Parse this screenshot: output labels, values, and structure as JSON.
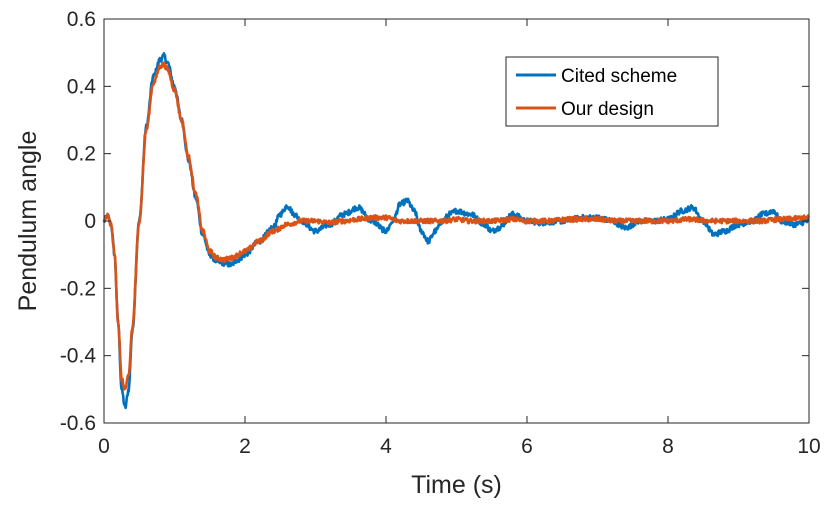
{
  "chart_data": {
    "type": "line",
    "xlabel": "Time (s)",
    "ylabel": "Pendulum angle",
    "xlim": [
      0,
      10
    ],
    "ylim": [
      -0.6,
      0.6
    ],
    "xticks": [
      "0",
      "2",
      "4",
      "6",
      "8",
      "10"
    ],
    "yticks": [
      "-0.6",
      "-0.4",
      "-0.2",
      "0",
      "0.2",
      "0.4",
      "0.6"
    ],
    "grid": false,
    "box": true,
    "legend_position": "top-right",
    "noise": {
      "Cited scheme": 0.008,
      "Our design": 0.007
    },
    "series": [
      {
        "name": "Cited scheme",
        "color": "#0072BD",
        "points": [
          [
            0,
            0.0
          ],
          [
            0.05,
            0.015
          ],
          [
            0.1,
            -0.01
          ],
          [
            0.15,
            -0.1
          ],
          [
            0.2,
            -0.3
          ],
          [
            0.25,
            -0.5
          ],
          [
            0.3,
            -0.555
          ],
          [
            0.35,
            -0.5
          ],
          [
            0.4,
            -0.33
          ],
          [
            0.5,
            0.0
          ],
          [
            0.6,
            0.28
          ],
          [
            0.7,
            0.43
          ],
          [
            0.8,
            0.48
          ],
          [
            0.85,
            0.49
          ],
          [
            0.9,
            0.47
          ],
          [
            1.0,
            0.4
          ],
          [
            1.1,
            0.3
          ],
          [
            1.2,
            0.18
          ],
          [
            1.3,
            0.07
          ],
          [
            1.4,
            -0.04
          ],
          [
            1.5,
            -0.1
          ],
          [
            1.6,
            -0.12
          ],
          [
            1.7,
            -0.125
          ],
          [
            1.8,
            -0.13
          ],
          [
            1.9,
            -0.115
          ],
          [
            2.0,
            -0.1
          ],
          [
            2.2,
            -0.06
          ],
          [
            2.4,
            -0.02
          ],
          [
            2.5,
            0.02
          ],
          [
            2.6,
            0.045
          ],
          [
            2.7,
            0.02
          ],
          [
            2.8,
            0.0
          ],
          [
            3.0,
            -0.03
          ],
          [
            3.2,
            -0.01
          ],
          [
            3.4,
            0.02
          ],
          [
            3.6,
            0.04
          ],
          [
            3.8,
            0.0
          ],
          [
            4.0,
            -0.03
          ],
          [
            4.1,
            0.0
          ],
          [
            4.2,
            0.05
          ],
          [
            4.3,
            0.06
          ],
          [
            4.4,
            0.03
          ],
          [
            4.5,
            -0.03
          ],
          [
            4.6,
            -0.06
          ],
          [
            4.7,
            -0.03
          ],
          [
            4.8,
            0.0
          ],
          [
            4.9,
            0.02
          ],
          [
            5.0,
            0.03
          ],
          [
            5.2,
            0.02
          ],
          [
            5.4,
            -0.01
          ],
          [
            5.5,
            -0.03
          ],
          [
            5.6,
            -0.02
          ],
          [
            5.8,
            0.02
          ],
          [
            6.0,
            0.0
          ],
          [
            6.2,
            -0.005
          ],
          [
            6.5,
            0.0
          ],
          [
            6.8,
            0.01
          ],
          [
            7.0,
            0.01
          ],
          [
            7.2,
            0.0
          ],
          [
            7.4,
            -0.02
          ],
          [
            7.6,
            0.0
          ],
          [
            7.8,
            0.0
          ],
          [
            8.0,
            0.005
          ],
          [
            8.2,
            0.03
          ],
          [
            8.35,
            0.04
          ],
          [
            8.5,
            0.0
          ],
          [
            8.65,
            -0.04
          ],
          [
            8.8,
            -0.03
          ],
          [
            9.0,
            -0.01
          ],
          [
            9.2,
            0.0
          ],
          [
            9.35,
            0.02
          ],
          [
            9.5,
            0.03
          ],
          [
            9.6,
            0.0
          ],
          [
            9.8,
            -0.01
          ],
          [
            10.0,
            0.0
          ]
        ]
      },
      {
        "name": "Our design",
        "color": "#D95319",
        "points": [
          [
            0,
            0.0
          ],
          [
            0.05,
            0.015
          ],
          [
            0.1,
            -0.01
          ],
          [
            0.15,
            -0.1
          ],
          [
            0.2,
            -0.3
          ],
          [
            0.25,
            -0.47
          ],
          [
            0.3,
            -0.5
          ],
          [
            0.35,
            -0.46
          ],
          [
            0.4,
            -0.32
          ],
          [
            0.5,
            0.0
          ],
          [
            0.6,
            0.27
          ],
          [
            0.7,
            0.41
          ],
          [
            0.8,
            0.46
          ],
          [
            0.85,
            0.465
          ],
          [
            0.9,
            0.45
          ],
          [
            1.0,
            0.39
          ],
          [
            1.1,
            0.3
          ],
          [
            1.2,
            0.19
          ],
          [
            1.3,
            0.08
          ],
          [
            1.4,
            -0.03
          ],
          [
            1.5,
            -0.09
          ],
          [
            1.6,
            -0.11
          ],
          [
            1.7,
            -0.115
          ],
          [
            1.8,
            -0.11
          ],
          [
            2.0,
            -0.09
          ],
          [
            2.2,
            -0.06
          ],
          [
            2.4,
            -0.03
          ],
          [
            2.6,
            -0.01
          ],
          [
            2.8,
            0.0
          ],
          [
            3.0,
            0.0
          ],
          [
            3.2,
            -0.005
          ],
          [
            3.4,
            0.0
          ],
          [
            3.6,
            0.005
          ],
          [
            3.8,
            0.01
          ],
          [
            4.0,
            0.01
          ],
          [
            4.2,
            0.0
          ],
          [
            4.4,
            0.0
          ],
          [
            4.6,
            0.0
          ],
          [
            4.8,
            0.0
          ],
          [
            5.0,
            0.005
          ],
          [
            5.2,
            0.0
          ],
          [
            5.5,
            0.0
          ],
          [
            5.8,
            0.005
          ],
          [
            6.0,
            0.0
          ],
          [
            6.3,
            0.0
          ],
          [
            6.6,
            0.005
          ],
          [
            7.0,
            0.005
          ],
          [
            7.3,
            0.0
          ],
          [
            7.6,
            0.0
          ],
          [
            8.0,
            0.0
          ],
          [
            8.3,
            0.005
          ],
          [
            8.6,
            0.0
          ],
          [
            9.0,
            0.0
          ],
          [
            9.3,
            0.0
          ],
          [
            9.6,
            0.005
          ],
          [
            10.0,
            0.01
          ]
        ]
      }
    ]
  }
}
